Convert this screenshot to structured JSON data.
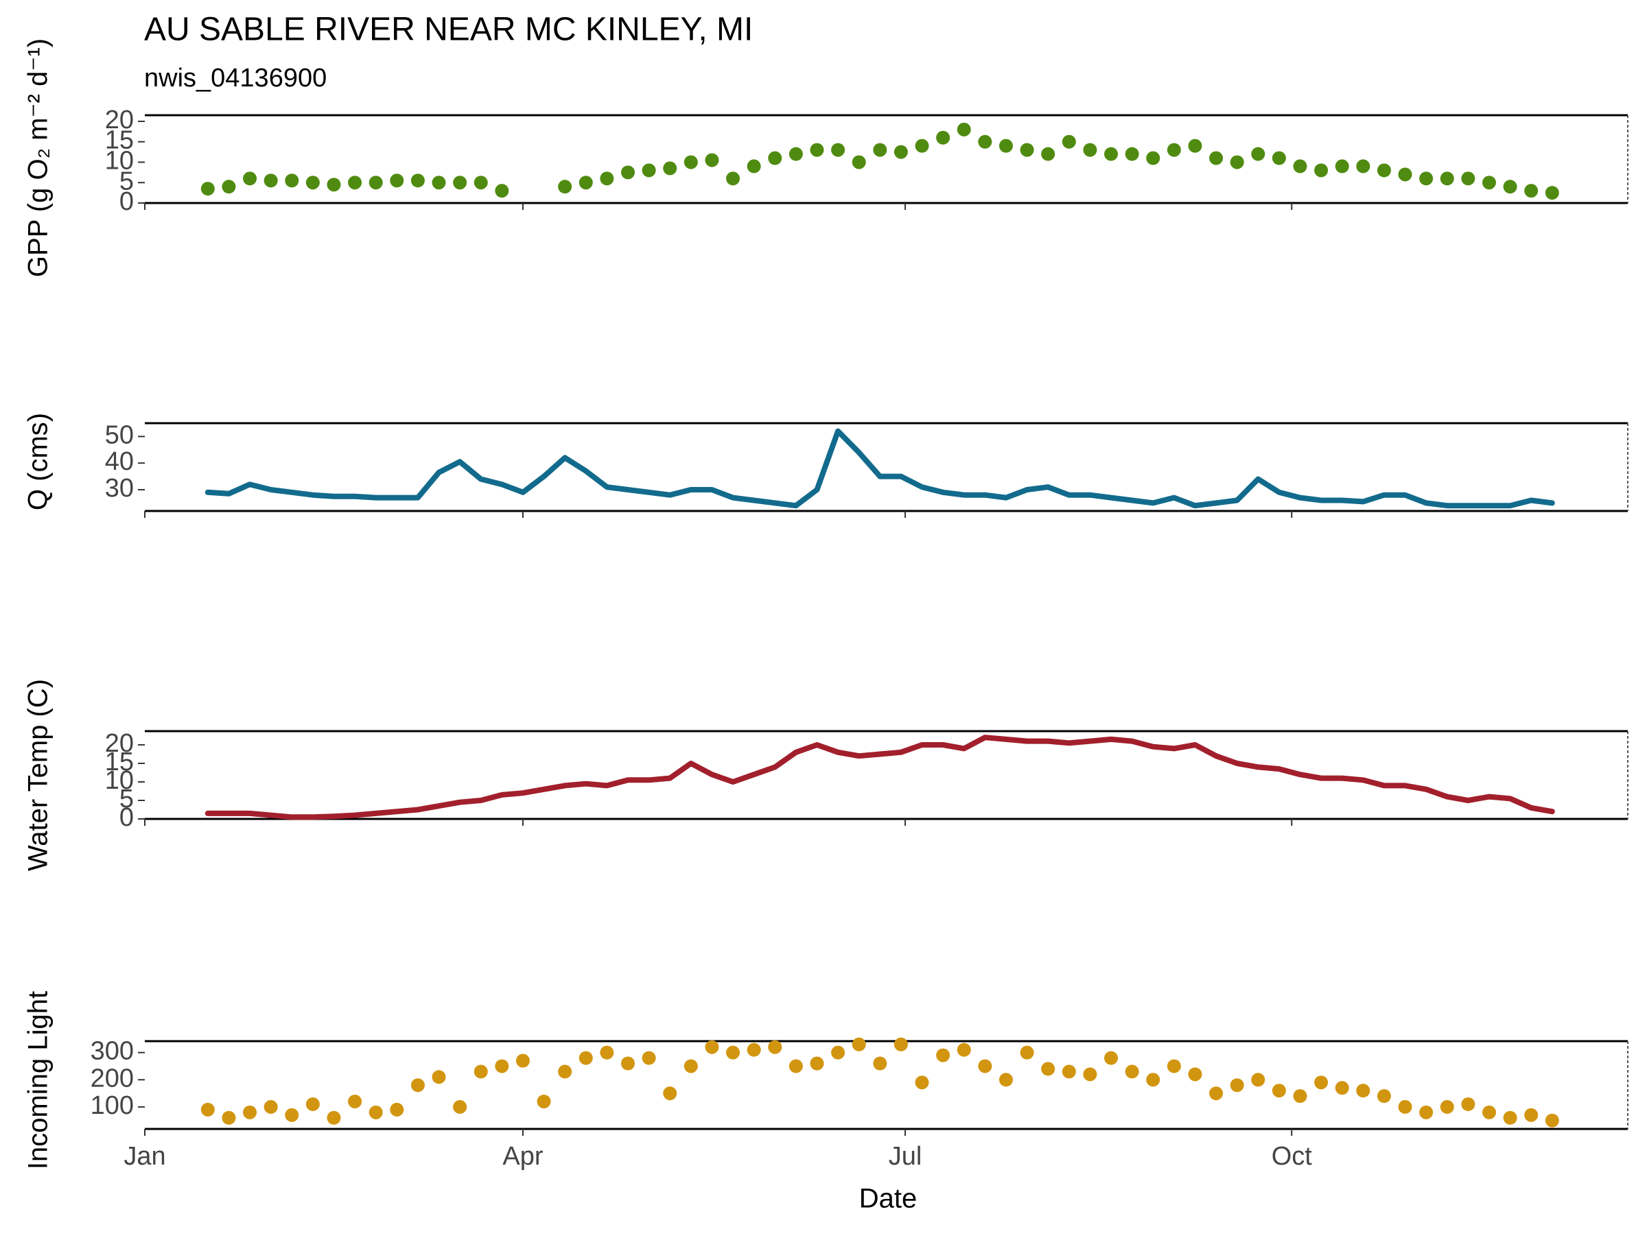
{
  "chart_data": [
    {
      "type": "scatter",
      "title": "AU SABLE RIVER NEAR MC KINLEY, MI",
      "subtitle": "nwis_04136900",
      "ylabel": "GPP (g O₂ m⁻² d⁻¹)",
      "color": "#4f8b10",
      "xlim": [
        0,
        353
      ],
      "ylim": [
        0,
        21.5
      ],
      "yticks": [
        0,
        5,
        10,
        15,
        20
      ],
      "x": [
        15,
        20,
        25,
        30,
        35,
        40,
        45,
        50,
        55,
        60,
        65,
        70,
        75,
        80,
        85,
        90,
        95,
        100,
        105,
        110,
        115,
        120,
        125,
        130,
        135,
        140,
        145,
        150,
        155,
        160,
        165,
        170,
        175,
        180,
        185,
        190,
        195,
        200,
        205,
        210,
        215,
        220,
        225,
        230,
        235,
        240,
        245,
        250,
        255,
        260,
        265,
        270,
        275,
        280,
        285,
        290,
        295,
        300,
        305,
        310,
        315,
        320,
        325,
        330,
        335
      ],
      "values": [
        3.5,
        4,
        6,
        5.5,
        5.5,
        5,
        4.5,
        5,
        5,
        5.5,
        5.5,
        5,
        5,
        5,
        3,
        null,
        null,
        4,
        5,
        6,
        7.5,
        8,
        8.5,
        10,
        10.5,
        6,
        9,
        11,
        12,
        13,
        13,
        10,
        13,
        12.5,
        14,
        16,
        18,
        15,
        14,
        13,
        12,
        15,
        13,
        12,
        12,
        11,
        13,
        14,
        11,
        10,
        12,
        11,
        9,
        8,
        9,
        9,
        8,
        7,
        6,
        6,
        6,
        5,
        4,
        3,
        2.5
      ]
    },
    {
      "type": "line",
      "ylabel": "Q (cms)",
      "color": "#126b8c",
      "xlim": [
        0,
        353
      ],
      "ylim": [
        22,
        55
      ],
      "yticks": [
        30,
        40,
        50
      ],
      "x": [
        15,
        20,
        25,
        30,
        35,
        40,
        45,
        50,
        55,
        60,
        65,
        70,
        75,
        80,
        85,
        90,
        95,
        100,
        105,
        110,
        115,
        120,
        125,
        130,
        135,
        140,
        145,
        150,
        155,
        160,
        165,
        170,
        175,
        180,
        185,
        190,
        195,
        200,
        205,
        210,
        215,
        220,
        225,
        230,
        235,
        240,
        245,
        250,
        255,
        260,
        265,
        270,
        275,
        280,
        285,
        290,
        295,
        300,
        305,
        310,
        315,
        320,
        325,
        330,
        335
      ],
      "values": [
        29,
        28.5,
        32,
        30,
        29,
        28,
        27.5,
        27.5,
        27,
        27,
        27,
        36.5,
        40.5,
        34,
        32,
        29,
        35,
        42,
        37,
        31,
        30,
        29,
        28,
        30,
        30,
        27,
        26,
        25,
        24,
        30,
        52,
        44,
        35,
        35,
        31,
        29,
        28,
        28,
        27,
        30,
        31,
        28,
        28,
        27,
        26,
        25,
        27,
        24,
        25,
        26,
        34,
        29,
        27,
        26,
        26,
        25.5,
        28,
        28,
        25,
        24,
        24,
        24,
        24,
        26,
        25
      ]
    },
    {
      "type": "line",
      "ylabel": "Water Temp (C)",
      "color": "#a21f2c",
      "xlim": [
        0,
        353
      ],
      "ylim": [
        0,
        23.7
      ],
      "yticks": [
        0,
        5,
        10,
        15,
        20
      ],
      "x": [
        15,
        20,
        25,
        30,
        35,
        40,
        45,
        50,
        55,
        60,
        65,
        70,
        75,
        80,
        85,
        90,
        95,
        100,
        105,
        110,
        115,
        120,
        125,
        130,
        135,
        140,
        145,
        150,
        155,
        160,
        165,
        170,
        175,
        180,
        185,
        190,
        195,
        200,
        205,
        210,
        215,
        220,
        225,
        230,
        235,
        240,
        245,
        250,
        255,
        260,
        265,
        270,
        275,
        280,
        285,
        290,
        295,
        300,
        305,
        310,
        315,
        320,
        325,
        330,
        335
      ],
      "values": [
        1.5,
        1.5,
        1.5,
        1,
        0.5,
        0.5,
        0.7,
        1,
        1.5,
        2,
        2.5,
        3.5,
        4.5,
        5,
        6.5,
        7,
        8,
        9,
        9.5,
        9,
        10.5,
        10.5,
        11,
        15,
        12,
        10,
        12,
        14,
        18,
        20,
        18,
        17,
        17.5,
        18,
        20,
        20,
        19,
        22,
        21.5,
        21,
        21,
        20.5,
        21,
        21.5,
        21,
        19.5,
        19,
        20,
        17,
        15,
        14,
        13.5,
        12,
        11,
        11,
        10.5,
        9,
        9,
        8,
        6,
        5,
        6,
        5.5,
        3,
        2
      ]
    },
    {
      "type": "scatter",
      "ylabel": "Incoming Light",
      "xlabel": "Date",
      "color": "#d2950f",
      "xlim": [
        0,
        353
      ],
      "ylim": [
        19,
        342
      ],
      "yticks": [
        100,
        200,
        300
      ],
      "xticks": [
        {
          "value": 0,
          "label": "Jan"
        },
        {
          "value": 90,
          "label": "Apr"
        },
        {
          "value": 181,
          "label": "Jul"
        },
        {
          "value": 273,
          "label": "Oct"
        }
      ],
      "x": [
        15,
        20,
        25,
        30,
        35,
        40,
        45,
        50,
        55,
        60,
        65,
        70,
        75,
        80,
        85,
        90,
        95,
        100,
        105,
        110,
        115,
        120,
        125,
        130,
        135,
        140,
        145,
        150,
        155,
        160,
        165,
        170,
        175,
        180,
        185,
        190,
        195,
        200,
        205,
        210,
        215,
        220,
        225,
        230,
        235,
        240,
        245,
        250,
        255,
        260,
        265,
        270,
        275,
        280,
        285,
        290,
        295,
        300,
        305,
        310,
        315,
        320,
        325,
        330,
        335
      ],
      "values": [
        90,
        60,
        80,
        100,
        70,
        110,
        60,
        120,
        80,
        90,
        180,
        210,
        100,
        230,
        250,
        270,
        120,
        230,
        280,
        300,
        260,
        280,
        150,
        250,
        320,
        300,
        310,
        320,
        250,
        260,
        300,
        330,
        260,
        330,
        190,
        290,
        310,
        250,
        200,
        300,
        240,
        230,
        220,
        280,
        230,
        200,
        250,
        220,
        150,
        180,
        200,
        160,
        140,
        190,
        170,
        160,
        140,
        100,
        80,
        100,
        110,
        80,
        60,
        70,
        50
      ]
    }
  ]
}
